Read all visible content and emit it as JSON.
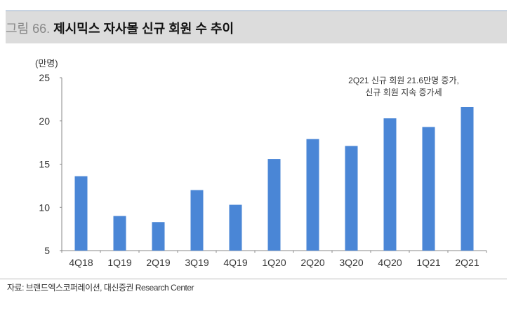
{
  "figure": {
    "label": "그림 66.",
    "title": "제시믹스 자사몰 신규 회원 수 추이"
  },
  "source": "자료: 브랜드엑스코퍼레이션, 대신증권 Research Center",
  "chart_data": {
    "type": "bar",
    "title": "제시믹스 자사몰 신규 회원 수 추이",
    "ylabel": "(만명)",
    "xlabel": "",
    "categories": [
      "4Q18",
      "1Q19",
      "2Q19",
      "3Q19",
      "4Q19",
      "1Q20",
      "2Q20",
      "3Q20",
      "4Q20",
      "1Q21",
      "2Q21"
    ],
    "values": [
      13.6,
      9.0,
      8.3,
      12.0,
      10.3,
      15.6,
      17.9,
      17.1,
      20.3,
      19.3,
      21.6
    ],
    "ylim": [
      5,
      25
    ],
    "yticks": [
      5,
      10,
      15,
      20,
      25
    ],
    "grid": false,
    "bar_color": "#4a86d6",
    "annotation": [
      "2Q21 신규 회원 21.6만명 증가,",
      "신규 회원 지속 증가세"
    ]
  }
}
